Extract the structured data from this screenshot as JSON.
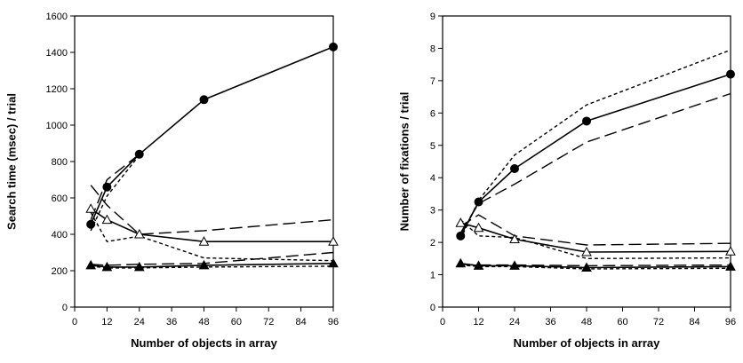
{
  "chart_data": [
    {
      "type": "line",
      "title": "",
      "xlabel": "Number of objects in array",
      "ylabel": "Search time (msec) / trial",
      "xlim": [
        0,
        96
      ],
      "ylim": [
        0,
        1600
      ],
      "xticks": [
        0,
        12,
        24,
        36,
        48,
        60,
        72,
        84,
        96
      ],
      "yticks": [
        0,
        200,
        400,
        600,
        800,
        1000,
        1200,
        1400,
        1600
      ],
      "grid": false,
      "legend": "none",
      "series": [
        {
          "style": "solid",
          "marker": "filled-circle",
          "x": [
            6,
            12,
            24,
            48,
            96
          ],
          "y": [
            455,
            660,
            840,
            1140,
            1430
          ]
        },
        {
          "style": "long-dash",
          "marker": "none",
          "x": [
            6,
            12,
            24
          ],
          "y": [
            480,
            700,
            840
          ]
        },
        {
          "style": "short-dash",
          "marker": "none",
          "x": [
            6,
            12,
            24
          ],
          "y": [
            420,
            610,
            835
          ]
        },
        {
          "style": "solid",
          "marker": "open-triangle",
          "x": [
            6,
            12,
            24,
            48,
            96
          ],
          "y": [
            540,
            480,
            400,
            360,
            360
          ]
        },
        {
          "style": "long-dash",
          "marker": "none",
          "x": [
            6,
            12,
            24,
            48,
            96
          ],
          "y": [
            670,
            560,
            400,
            420,
            480
          ]
        },
        {
          "style": "short-dash",
          "marker": "none",
          "x": [
            6,
            12,
            24,
            48,
            96
          ],
          "y": [
            520,
            360,
            390,
            270,
            255
          ]
        },
        {
          "style": "solid",
          "marker": "filled-triangle",
          "x": [
            6,
            12,
            24,
            48,
            96
          ],
          "y": [
            230,
            220,
            220,
            230,
            240
          ]
        },
        {
          "style": "long-dash",
          "marker": "none",
          "x": [
            6,
            12,
            24,
            48,
            96
          ],
          "y": [
            235,
            230,
            235,
            240,
            300
          ]
        },
        {
          "style": "short-dash",
          "marker": "none",
          "x": [
            6,
            12,
            24,
            48,
            96
          ],
          "y": [
            225,
            215,
            215,
            220,
            225
          ]
        }
      ]
    },
    {
      "type": "line",
      "title": "",
      "xlabel": "Number of objects in array",
      "ylabel": "Number of fixations / trial",
      "xlim": [
        0,
        96
      ],
      "ylim": [
        0,
        9
      ],
      "xticks": [
        0,
        12,
        24,
        36,
        48,
        60,
        72,
        84,
        96
      ],
      "yticks": [
        0,
        1,
        2,
        3,
        4,
        5,
        6,
        7,
        8,
        9
      ],
      "grid": false,
      "legend": "none",
      "series": [
        {
          "style": "solid",
          "marker": "filled-circle",
          "x": [
            6,
            12,
            24,
            48,
            96
          ],
          "y": [
            2.2,
            3.25,
            4.28,
            5.75,
            7.2
          ]
        },
        {
          "style": "long-dash",
          "marker": "none",
          "x": [
            6,
            12,
            24,
            48,
            96
          ],
          "y": [
            2.3,
            3.2,
            3.8,
            5.1,
            6.6
          ]
        },
        {
          "style": "short-dash",
          "marker": "none",
          "x": [
            6,
            12,
            24,
            48,
            96
          ],
          "y": [
            2.1,
            3.3,
            4.7,
            6.25,
            7.95
          ]
        },
        {
          "style": "solid",
          "marker": "open-triangle",
          "x": [
            6,
            12,
            24,
            48,
            96
          ],
          "y": [
            2.6,
            2.45,
            2.1,
            1.7,
            1.72
          ]
        },
        {
          "style": "long-dash",
          "marker": "none",
          "x": [
            6,
            12,
            24,
            48,
            96
          ],
          "y": [
            2.5,
            2.85,
            2.2,
            1.92,
            1.97
          ]
        },
        {
          "style": "short-dash",
          "marker": "none",
          "x": [
            6,
            12,
            24,
            48,
            96
          ],
          "y": [
            2.7,
            2.2,
            2.15,
            1.5,
            1.52
          ]
        },
        {
          "style": "solid",
          "marker": "filled-triangle",
          "x": [
            6,
            12,
            24,
            48,
            96
          ],
          "y": [
            1.35,
            1.28,
            1.28,
            1.22,
            1.25
          ]
        },
        {
          "style": "long-dash",
          "marker": "none",
          "x": [
            6,
            12,
            24,
            48,
            96
          ],
          "y": [
            1.32,
            1.3,
            1.3,
            1.28,
            1.3
          ]
        },
        {
          "style": "short-dash",
          "marker": "none",
          "x": [
            6,
            12,
            24,
            48,
            96
          ],
          "y": [
            1.3,
            1.25,
            1.25,
            1.18,
            1.2
          ]
        }
      ]
    }
  ]
}
